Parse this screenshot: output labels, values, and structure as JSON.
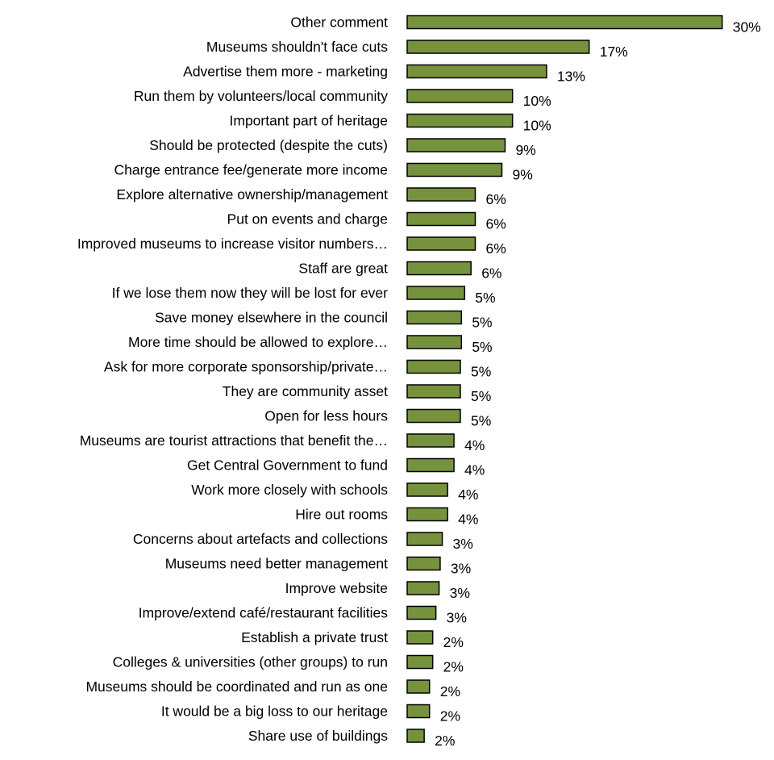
{
  "chart_data": {
    "type": "bar",
    "orientation": "horizontal",
    "title": "",
    "xlabel": "",
    "ylabel": "",
    "xlim": [
      0,
      30
    ],
    "grid": false,
    "legend": "none",
    "value_suffix": "%",
    "bar_color": "#76923c",
    "categories": [
      "Other comment",
      "Museums shouldn't face cuts",
      "Advertise them more - marketing",
      "Run them by volunteers/local community",
      "Important part of heritage",
      "Should be protected (despite the cuts)",
      "Charge entrance fee/generate more income",
      "Explore alternative ownership/management",
      "Put on events and charge",
      "Improved museums to increase visitor numbers…",
      "Staff are great",
      "If we lose them now they will be lost for ever",
      "Save money elsewhere in the council",
      "More time should be allowed to explore…",
      "Ask for more corporate sponsorship/private…",
      "They are community asset",
      "Open for less hours",
      "Museums are tourist attractions that benefit the…",
      "Get Central Government to fund",
      "Work more closely with schools",
      "Hire out rooms",
      "Concerns about artefacts and collections",
      "Museums need better management",
      "Improve website",
      "Improve/extend café/restaurant facilities",
      "Establish a private trust",
      "Colleges & universities (other groups) to run",
      "Museums should be coordinated and run as one",
      "It would be a big loss to our heritage",
      "Share use of buildings"
    ],
    "values": [
      30,
      17,
      13,
      10,
      10,
      9,
      9,
      6,
      6,
      6,
      6,
      5,
      5,
      5,
      5,
      5,
      5,
      4,
      4,
      4,
      4,
      3,
      3,
      3,
      3,
      2,
      2,
      2,
      2,
      2
    ],
    "bar_lengths": [
      29.6,
      17.1,
      13.1,
      9.9,
      9.9,
      9.2,
      8.9,
      6.4,
      6.4,
      6.4,
      6.0,
      5.4,
      5.1,
      5.1,
      5.0,
      5.0,
      5.0,
      4.4,
      4.4,
      3.8,
      3.8,
      3.3,
      3.1,
      3.0,
      2.7,
      2.4,
      2.4,
      2.1,
      2.1,
      1.6
    ],
    "value_labels": [
      "30%",
      "17%",
      "13%",
      "10%",
      "10%",
      "9%",
      "9%",
      "6%",
      "6%",
      "6%",
      "6%",
      "5%",
      "5%",
      "5%",
      "5%",
      "5%",
      "5%",
      "4%",
      "4%",
      "4%",
      "4%",
      "3%",
      "3%",
      "3%",
      "3%",
      "2%",
      "2%",
      "2%",
      "2%",
      "2%"
    ]
  }
}
